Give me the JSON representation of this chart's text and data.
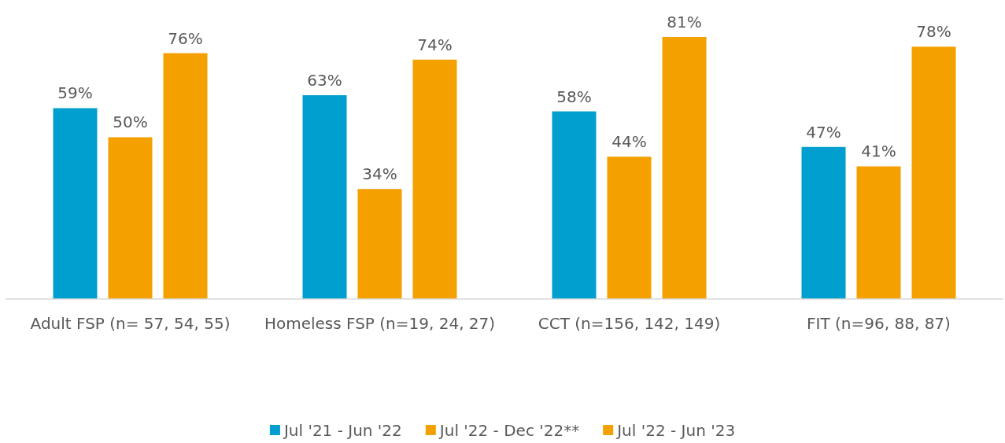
{
  "chart_data": {
    "type": "bar",
    "categories": [
      "Adult FSP (n= 57, 54, 55)",
      "Homeless FSP (n=19, 24, 27)",
      "CCT (n=156, 142, 149)",
      "FIT (n=96, 88, 87)"
    ],
    "series": [
      {
        "name": "Jul '21 - Jun '22",
        "color": "#009fcf",
        "values": [
          59,
          63,
          58,
          47
        ],
        "value_labels": [
          "59%",
          "63%",
          "58%",
          "47%"
        ]
      },
      {
        "name": "Jul '22 - Dec '22**",
        "color": "#f4a100",
        "values": [
          50,
          34,
          44,
          41
        ],
        "value_labels": [
          "50%",
          "34%",
          "44%",
          "41%"
        ]
      },
      {
        "name": "Jul '22 - Jun '23",
        "color": "#f4a100",
        "values": [
          76,
          74,
          81,
          78
        ],
        "value_labels": [
          "76%",
          "74%",
          "81%",
          "78%"
        ]
      }
    ],
    "data_labels": true,
    "legend": "bottom"
  }
}
